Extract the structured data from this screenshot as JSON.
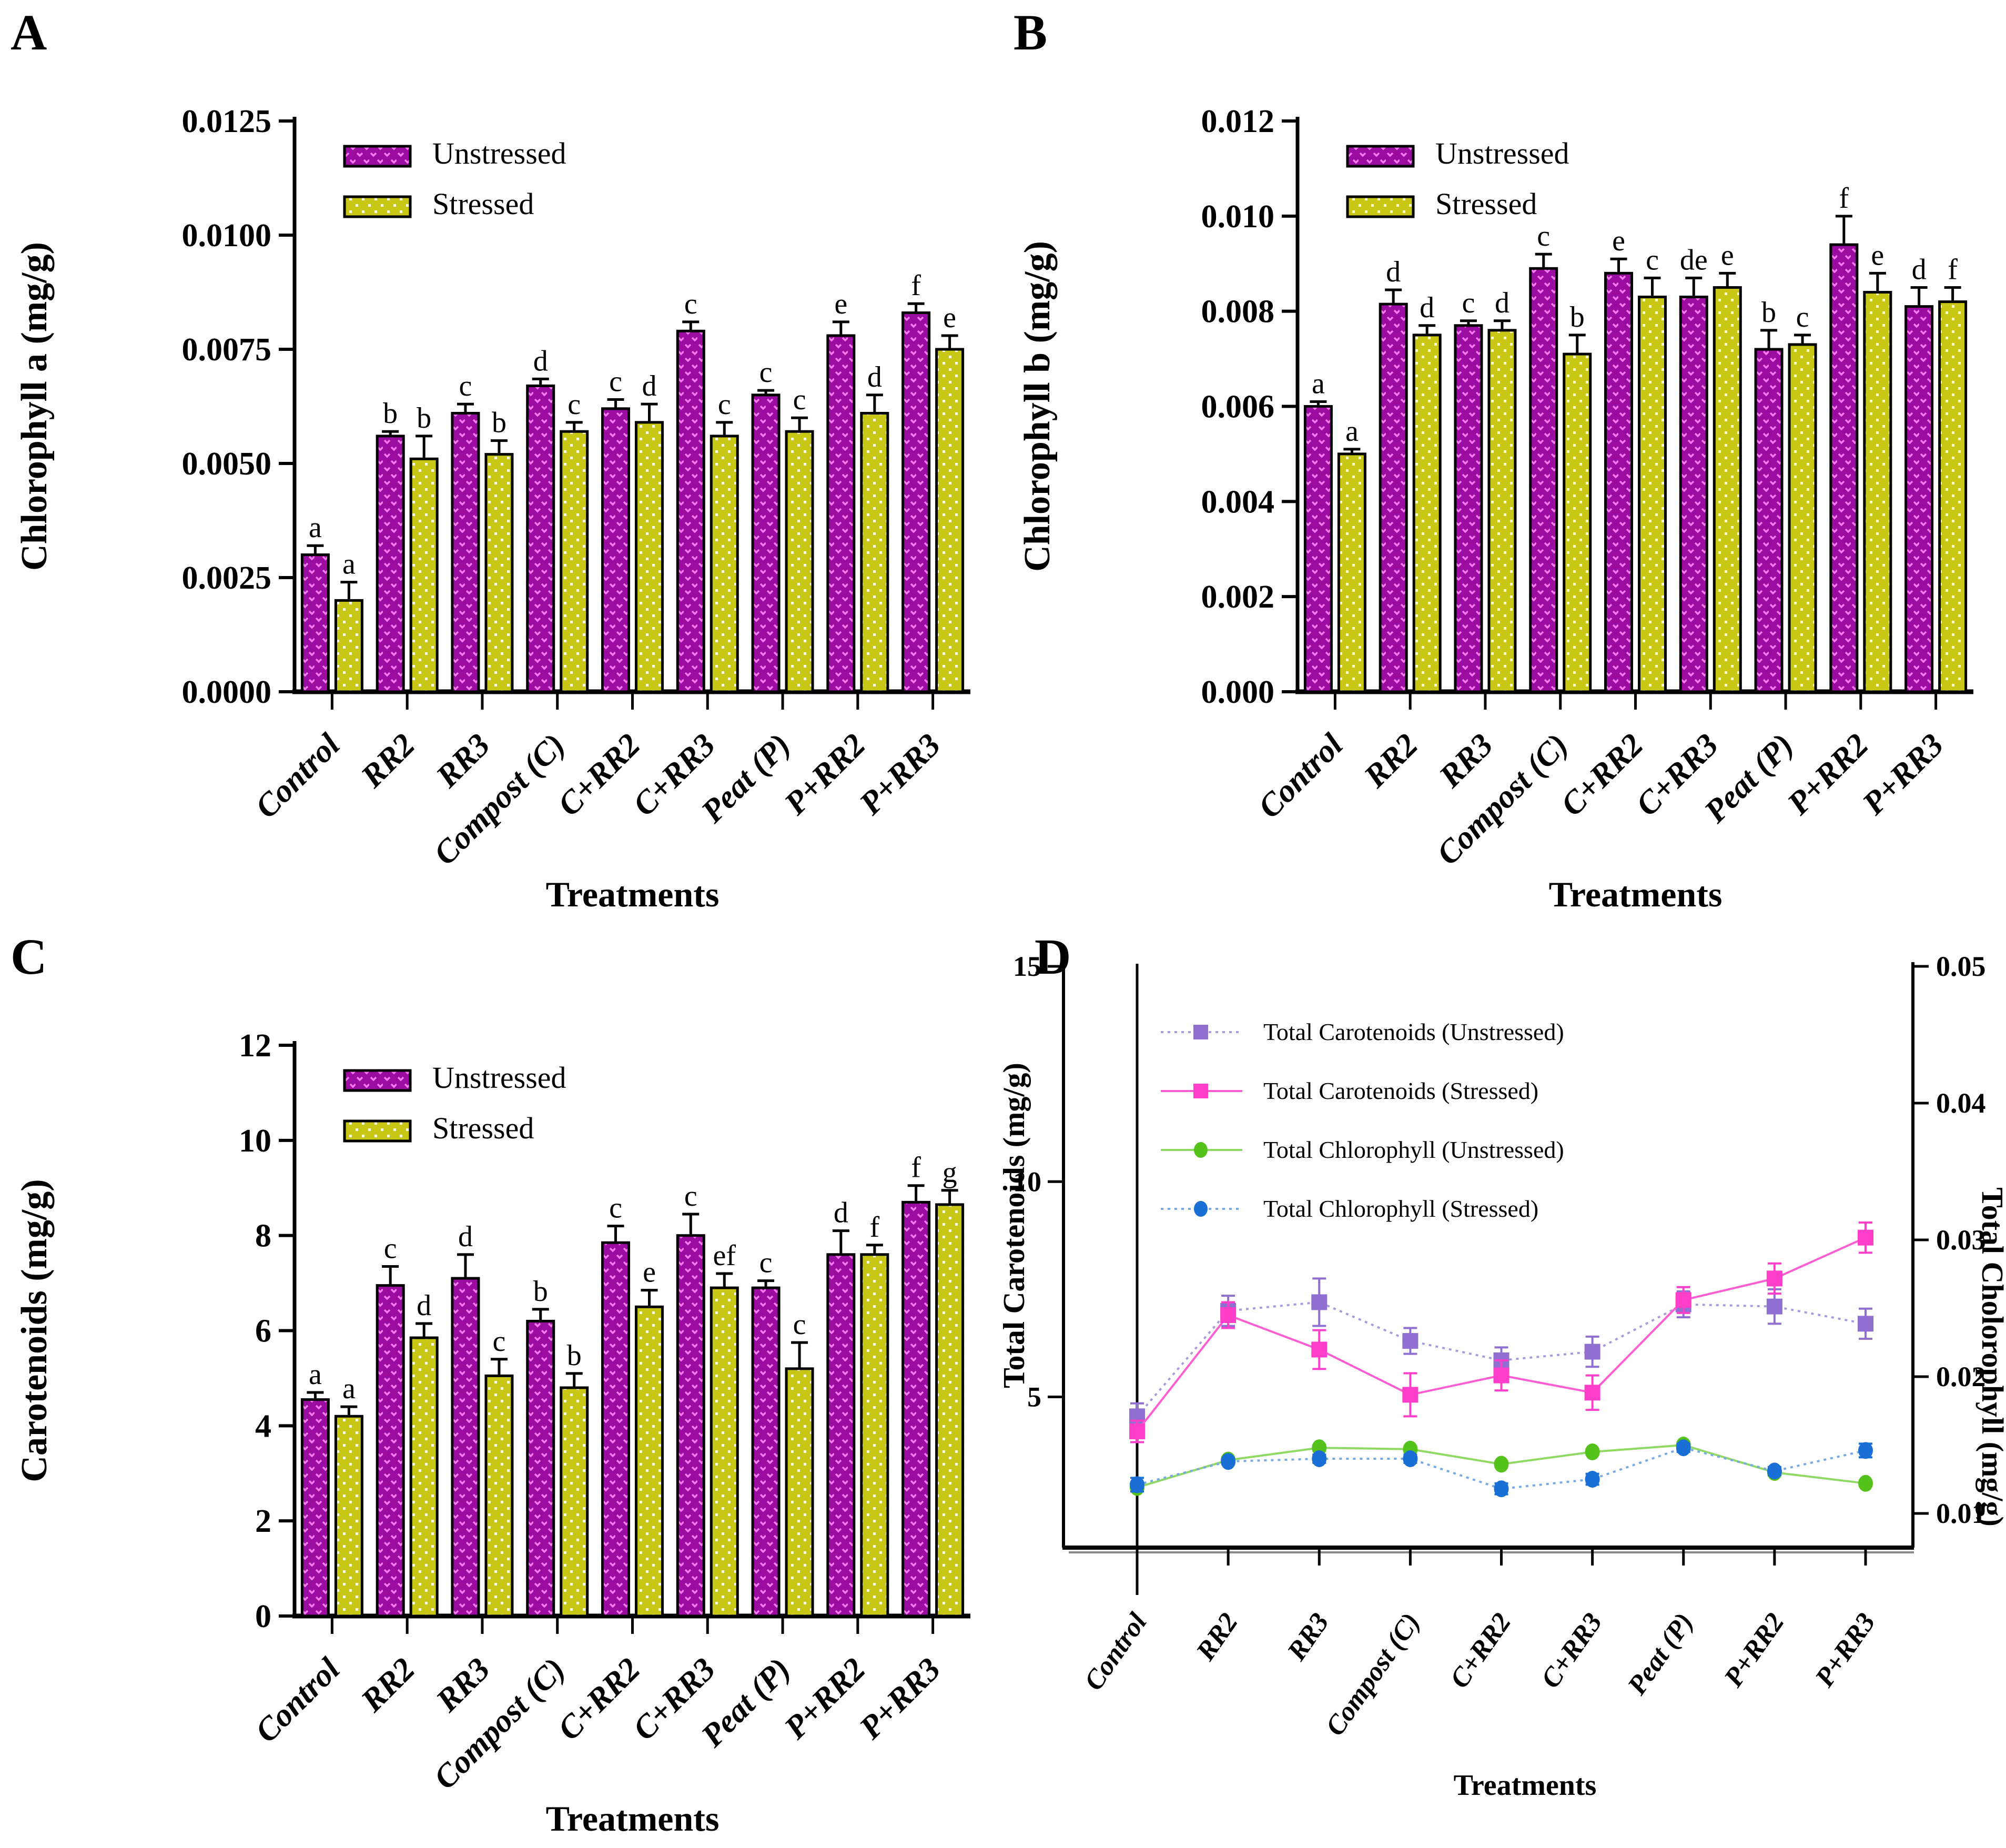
{
  "figure": {
    "background": "#ffffff",
    "bar_colors": {
      "unstressed_fill": "#9B0DA0",
      "unstressed_dot": "#F77BF0",
      "stressed_fill": "#C9C715",
      "stressed_dot": "#FDFDE0",
      "outline": "#000000"
    }
  },
  "chart_data": [
    {
      "panel": "A",
      "type": "bar",
      "xlabel": "Treatments",
      "ylabel": "Chlorophyll a (mg/g)",
      "ylim": [
        0,
        0.0125
      ],
      "yticks": [
        {
          "value": 0.0,
          "label": "0.0000"
        },
        {
          "value": 0.0025,
          "label": "0.0025"
        },
        {
          "value": 0.005,
          "label": "0.0050"
        },
        {
          "value": 0.0075,
          "label": "0.0075"
        },
        {
          "value": 0.01,
          "label": "0.0100"
        },
        {
          "value": 0.0125,
          "label": "0.0125"
        }
      ],
      "categories": [
        "Control",
        "RR2",
        "RR3",
        "Compost (C)",
        "C+RR2",
        "C+RR3",
        "Peat (P)",
        "P+RR2",
        "P+RR3"
      ],
      "legend": [
        "Unstressed",
        "Stressed"
      ],
      "series": [
        {
          "name": "Unstressed",
          "pattern": "purple-vdots",
          "values": [
            0.003,
            0.0056,
            0.0061,
            0.0067,
            0.0062,
            0.0079,
            0.0065,
            0.0078,
            0.0083
          ],
          "errors": [
            0.0002,
            0.0001,
            0.0002,
            0.00015,
            0.0002,
            0.0002,
            0.0001,
            0.0003,
            0.0002
          ],
          "letters": [
            "a",
            "b",
            "c",
            "d",
            "c",
            "c",
            "c",
            "e",
            "f"
          ]
        },
        {
          "name": "Stressed",
          "pattern": "yellow-dots",
          "values": [
            0.002,
            0.0051,
            0.0052,
            0.0057,
            0.0059,
            0.0056,
            0.0057,
            0.0061,
            0.0075
          ],
          "errors": [
            0.0004,
            0.0005,
            0.0003,
            0.0002,
            0.0004,
            0.0003,
            0.0003,
            0.0004,
            0.0003
          ],
          "letters": [
            "a",
            "b",
            "b",
            "c",
            "d",
            "c",
            "c",
            "d",
            "e"
          ]
        }
      ]
    },
    {
      "panel": "B",
      "type": "bar",
      "xlabel": "Treatments",
      "ylabel": "Chlorophyll b (mg/g)",
      "ylim": [
        0,
        0.012
      ],
      "yticks": [
        {
          "value": 0.0,
          "label": "0.000"
        },
        {
          "value": 0.002,
          "label": "0.002"
        },
        {
          "value": 0.004,
          "label": "0.004"
        },
        {
          "value": 0.006,
          "label": "0.006"
        },
        {
          "value": 0.008,
          "label": "0.008"
        },
        {
          "value": 0.01,
          "label": "0.010"
        },
        {
          "value": 0.012,
          "label": "0.012"
        }
      ],
      "categories": [
        "Control",
        "RR2",
        "RR3",
        "Compost (C)",
        "C+RR2",
        "C+RR3",
        "Peat (P)",
        "P+RR2",
        "P+RR3"
      ],
      "legend": [
        "Unstressed",
        "Stressed"
      ],
      "series": [
        {
          "name": "Unstressed",
          "pattern": "purple-vdots",
          "values": [
            0.006,
            0.00815,
            0.0077,
            0.0089,
            0.0088,
            0.0083,
            0.0072,
            0.0094,
            0.0081
          ],
          "errors": [
            0.0001,
            0.0003,
            0.0001,
            0.0003,
            0.0003,
            0.0004,
            0.0004,
            0.0006,
            0.0004
          ],
          "letters": [
            "a",
            "d",
            "c",
            "c",
            "e",
            "de",
            "b",
            "f",
            "d"
          ]
        },
        {
          "name": "Stressed",
          "pattern": "yellow-dots",
          "values": [
            0.005,
            0.0075,
            0.0076,
            0.0071,
            0.0083,
            0.0085,
            0.0073,
            0.0084,
            0.0082
          ],
          "errors": [
            0.0001,
            0.0002,
            0.0002,
            0.0004,
            0.0004,
            0.0003,
            0.0002,
            0.0004,
            0.0003
          ],
          "letters": [
            "a",
            "d",
            "d",
            "b",
            "c",
            "e",
            "c",
            "e",
            "f"
          ]
        }
      ]
    },
    {
      "panel": "C",
      "type": "bar",
      "xlabel": "Treatments",
      "ylabel": "Carotenoids (mg/g)",
      "ylim": [
        0,
        12
      ],
      "yticks": [
        {
          "value": 0,
          "label": "0"
        },
        {
          "value": 2,
          "label": "2"
        },
        {
          "value": 4,
          "label": "4"
        },
        {
          "value": 6,
          "label": "6"
        },
        {
          "value": 8,
          "label": "8"
        },
        {
          "value": 10,
          "label": "10"
        },
        {
          "value": 12,
          "label": "12"
        }
      ],
      "categories": [
        "Control",
        "RR2",
        "RR3",
        "Compost (C)",
        "C+RR2",
        "C+RR3",
        "Peat (P)",
        "P+RR2",
        "P+RR3"
      ],
      "legend": [
        "Unstressed",
        "Stressed"
      ],
      "series": [
        {
          "name": "Unstressed",
          "pattern": "purple-vdots",
          "values": [
            4.55,
            6.95,
            7.1,
            6.2,
            7.85,
            8.0,
            6.9,
            7.6,
            8.7
          ],
          "errors": [
            0.15,
            0.4,
            0.5,
            0.25,
            0.35,
            0.45,
            0.15,
            0.5,
            0.35
          ],
          "letters": [
            "a",
            "c",
            "d",
            "b",
            "c",
            "c",
            "c",
            "d",
            "f"
          ]
        },
        {
          "name": "Stressed",
          "pattern": "yellow-dots",
          "values": [
            4.2,
            5.85,
            5.05,
            4.8,
            6.5,
            6.9,
            5.2,
            7.6,
            8.65
          ],
          "errors": [
            0.2,
            0.3,
            0.35,
            0.3,
            0.35,
            0.3,
            0.55,
            0.2,
            0.3
          ],
          "letters": [
            "a",
            "d",
            "c",
            "b",
            "e",
            "ef",
            "c",
            "f",
            "g"
          ]
        }
      ]
    },
    {
      "panel": "D",
      "type": "line-dual-axis",
      "xlabel": "Treatments",
      "ylabel_left": "Total Carotenoids (mg/g)",
      "ylabel_right": "Total Cholorophyll (mg/g)",
      "ylim_left": [
        1.5,
        15
      ],
      "yticks_left": [
        {
          "value": 5,
          "label": "5"
        },
        {
          "value": 10,
          "label": "10"
        },
        {
          "value": 15,
          "label": "15"
        }
      ],
      "ylim_right": [
        0.0075,
        0.05
      ],
      "yticks_right": [
        {
          "value": 0.01,
          "label": "0.01"
        },
        {
          "value": 0.02,
          "label": "0.02"
        },
        {
          "value": 0.03,
          "label": "0.03"
        },
        {
          "value": 0.04,
          "label": "0.04"
        },
        {
          "value": 0.05,
          "label": "0.05"
        }
      ],
      "categories": [
        "Control",
        "RR2",
        "RR3",
        "Compost (C)",
        "C+RR2",
        "C+RR3",
        "Peat (P)",
        "P+RR2",
        "P+RR3"
      ],
      "series": [
        {
          "name": "Total Carotenoids (Unstressed)",
          "axis": "left",
          "marker": "square",
          "marker_color": "#8F6FD0",
          "line_color": "#A99BDB",
          "line_style": "dotted",
          "values": [
            4.55,
            7.0,
            7.2,
            6.3,
            5.85,
            6.05,
            7.15,
            7.1,
            6.7
          ],
          "errors": [
            0.3,
            0.35,
            0.55,
            0.3,
            0.3,
            0.35,
            0.3,
            0.4,
            0.35
          ]
        },
        {
          "name": "Total Carotenoids (Stressed)",
          "axis": "left",
          "marker": "square",
          "marker_color": "#FF3EC9",
          "line_color": "#FF5ED2",
          "line_style": "solid",
          "values": [
            4.2,
            6.9,
            6.1,
            5.05,
            5.5,
            5.1,
            7.25,
            7.75,
            8.7
          ],
          "errors": [
            0.25,
            0.3,
            0.45,
            0.5,
            0.35,
            0.4,
            0.3,
            0.35,
            0.35
          ]
        },
        {
          "name": "Total Chlorophyll (Unstressed)",
          "axis": "right",
          "marker": "circle",
          "marker_color": "#55C21B",
          "line_color": "#8FD964",
          "line_style": "solid",
          "values": [
            0.0119,
            0.0139,
            0.0148,
            0.0147,
            0.0136,
            0.0145,
            0.015,
            0.013,
            0.0122
          ],
          "errors": [
            0.0002,
            0.0002,
            0.0002,
            0.0002,
            0.0002,
            0.0002,
            0.0002,
            0.0002,
            0.0002
          ]
        },
        {
          "name": "Total Chlorophyll (Stressed)",
          "axis": "right",
          "marker": "circle",
          "marker_color": "#1A6FD6",
          "line_color": "#77A9E4",
          "line_style": "dotted",
          "values": [
            0.0121,
            0.0138,
            0.014,
            0.014,
            0.0118,
            0.0125,
            0.0148,
            0.0131,
            0.0146
          ],
          "errors": [
            0.0005,
            0.0002,
            0.0003,
            0.0003,
            0.0004,
            0.0004,
            0.0003,
            0.0003,
            0.0005
          ]
        }
      ]
    }
  ]
}
